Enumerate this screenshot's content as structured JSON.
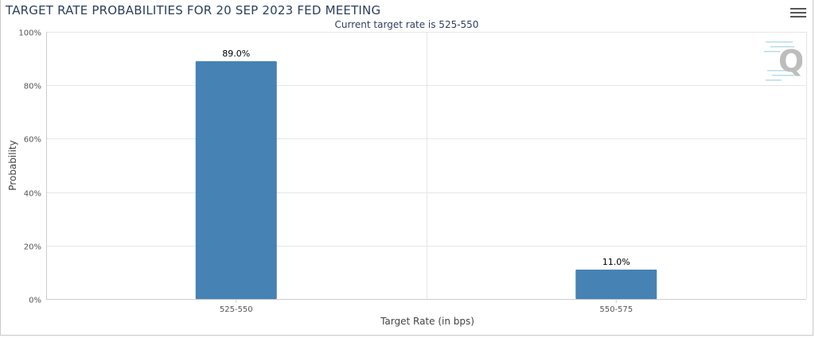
{
  "header": {
    "title": "TARGET RATE PROBABILITIES FOR 20 SEP 2023 FED MEETING",
    "subtitle": "Current target rate is 525-550",
    "menu_icon": "hamburger-menu-icon",
    "watermark_icon": "q-logo-icon"
  },
  "colors": {
    "bar": "#4682b4",
    "grid": "#e6e6e6",
    "title": "#2a3f5c"
  },
  "chart_data": {
    "type": "bar",
    "title": "TARGET RATE PROBABILITIES FOR 20 SEP 2023 FED MEETING",
    "subtitle": "Current target rate is 525-550",
    "xlabel": "Target Rate (in bps)",
    "ylabel": "Probability",
    "categories": [
      "525-550",
      "550-575"
    ],
    "values": [
      89.0,
      11.0
    ],
    "data_labels": [
      "89.0%",
      "11.0%"
    ],
    "ylim": [
      0,
      100
    ],
    "yticks": [
      0,
      20,
      40,
      60,
      80,
      100
    ],
    "ytick_labels": [
      "0%",
      "20%",
      "40%",
      "60%",
      "80%",
      "100%"
    ],
    "grid": true,
    "legend": "none"
  }
}
